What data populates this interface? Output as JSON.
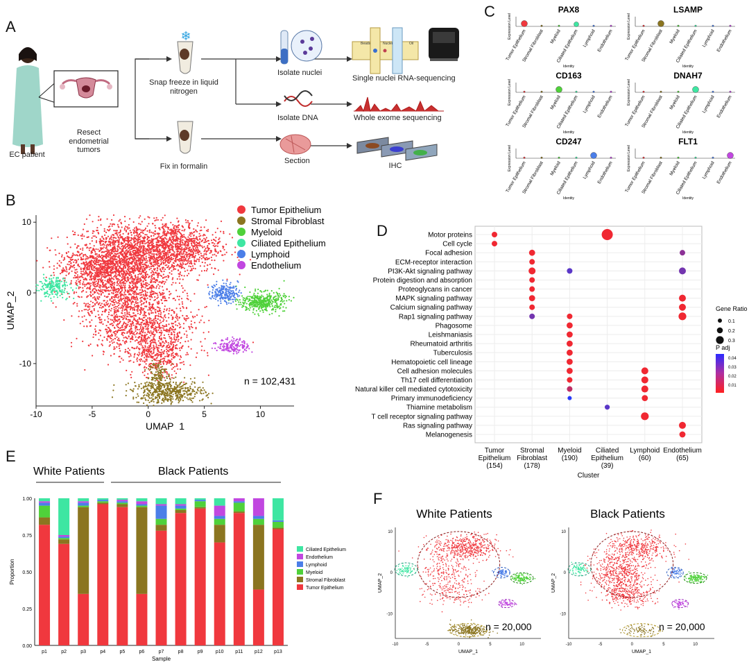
{
  "panels": {
    "a": "A",
    "b": "B",
    "c": "C",
    "d": "D",
    "e": "E",
    "f": "F"
  },
  "panel_a": {
    "patient": "EC patient",
    "resect": "Resect endometrial tumors",
    "snap": "Snap freeze in liquid nitrogen",
    "fix": "Fix in formalin",
    "isolate_nuclei": "Isolate nuclei",
    "isolate_dna": "Isolate DNA",
    "section": "Section",
    "snrna": "Single nuclei RNA-sequencing",
    "wes": "Whole exome sequencing",
    "ihc": "IHC",
    "beads": "Beads",
    "nuclei": "Nuclei",
    "oil": "Oil"
  },
  "colors": {
    "tumor": "#f0383e",
    "stromal": "#8b7520",
    "myeloid": "#4fd13a",
    "ciliated": "#3ee6a2",
    "lymphoid": "#4b7ee8",
    "endothelium": "#c147e0"
  },
  "chart_data": [
    {
      "type": "scatter",
      "id": "B",
      "xlabel": "UMAP_1",
      "ylabel": "UMAP_2",
      "xlim": [
        -10,
        13
      ],
      "ylim": [
        -16,
        11
      ],
      "xticks": [
        -10,
        -5,
        0,
        5,
        10
      ],
      "yticks": [
        -10,
        0,
        10
      ],
      "legend": [
        "Tumor Epithelium",
        "Stromal Fibroblast",
        "Myeloid",
        "Ciliated Epithelium",
        "Lymphoid",
        "Endothelium"
      ],
      "legend_position": "top-right",
      "annotation": "n = 102,431",
      "clusters": [
        {
          "name": "Tumor Epithelium",
          "x": -0.5,
          "y": 0.5
        },
        {
          "name": "Stromal Fibroblast",
          "x": 1.5,
          "y": -14
        },
        {
          "name": "Myeloid",
          "x": 10.2,
          "y": -1.3
        },
        {
          "name": "Ciliated Epithelium",
          "x": -8.5,
          "y": 0.8
        },
        {
          "name": "Lymphoid",
          "x": 6.8,
          "y": 0
        },
        {
          "name": "Endothelium",
          "x": 7.5,
          "y": -7.5
        }
      ]
    },
    {
      "type": "violin",
      "id": "C",
      "ylabel": "Expression Level",
      "xlabel": "Identity",
      "categories": [
        "Tumor Epithelium",
        "Stromal Fibroblast",
        "Myeloid",
        "Ciliated Epithelium",
        "Lymphoid",
        "Endothelium"
      ],
      "genes": [
        {
          "name": "PAX8",
          "dominant": "Tumor Epithelium",
          "secondary": "Ciliated Epithelium"
        },
        {
          "name": "LSAMP",
          "dominant": "Stromal Fibroblast"
        },
        {
          "name": "CD163",
          "dominant": "Myeloid"
        },
        {
          "name": "DNAH7",
          "dominant": "Ciliated Epithelium"
        },
        {
          "name": "CD247",
          "dominant": "Lymphoid"
        },
        {
          "name": "FLT1",
          "dominant": "Endothelium"
        }
      ]
    },
    {
      "type": "dot",
      "id": "D",
      "xlabel": "Cluster",
      "clusters": [
        {
          "name": "Tumor Epithelium",
          "n": "(154)"
        },
        {
          "name": "Stromal Fibroblast",
          "n": "(178)"
        },
        {
          "name": "Myeloid",
          "n": "(190)"
        },
        {
          "name": "Ciliated Epithelium",
          "n": "(39)"
        },
        {
          "name": "Lymphoid",
          "n": "(60)"
        },
        {
          "name": "Endothelium",
          "n": "(65)"
        }
      ],
      "pathways": [
        "Motor proteins",
        "Cell cycle",
        "Focal adhesion",
        "ECM-receptor interaction",
        "PI3K-Akt signaling pathway",
        "Protein digestion and absorption",
        "Proteoglycans in cancer",
        "MAPK signaling pathway",
        "Calcium signaling pathway",
        "Rap1 signaling pathway",
        "Phagosome",
        "Leishmaniasis",
        "Rheumatoid arthritis",
        "Tuberculosis",
        "Hematopoietic cell lineage",
        "Cell adhesion molecules",
        "Th17 cell differentiation",
        "Natural killer cell mediated cytotoxicity",
        "Primary immunodeficiency",
        "Thiamine metabolism",
        "T cell receptor signaling pathway",
        "Ras signaling pathway",
        "Melanogenesis"
      ],
      "points": [
        {
          "p": 0,
          "c": 0,
          "ratio": 0.1,
          "padj": 0.005
        },
        {
          "p": 0,
          "c": 3,
          "ratio": 0.3,
          "padj": 0.005
        },
        {
          "p": 1,
          "c": 0,
          "ratio": 0.1,
          "padj": 0.005
        },
        {
          "p": 2,
          "c": 1,
          "ratio": 0.12,
          "padj": 0.005
        },
        {
          "p": 2,
          "c": 5,
          "ratio": 0.1,
          "padj": 0.025
        },
        {
          "p": 3,
          "c": 1,
          "ratio": 0.1,
          "padj": 0.005
        },
        {
          "p": 4,
          "c": 1,
          "ratio": 0.15,
          "padj": 0.005
        },
        {
          "p": 4,
          "c": 2,
          "ratio": 0.1,
          "padj": 0.035
        },
        {
          "p": 4,
          "c": 5,
          "ratio": 0.15,
          "padj": 0.03
        },
        {
          "p": 5,
          "c": 1,
          "ratio": 0.1,
          "padj": 0.005
        },
        {
          "p": 6,
          "c": 1,
          "ratio": 0.1,
          "padj": 0.005
        },
        {
          "p": 7,
          "c": 1,
          "ratio": 0.12,
          "padj": 0.005
        },
        {
          "p": 7,
          "c": 5,
          "ratio": 0.15,
          "padj": 0.005
        },
        {
          "p": 8,
          "c": 1,
          "ratio": 0.1,
          "padj": 0.005
        },
        {
          "p": 8,
          "c": 5,
          "ratio": 0.15,
          "padj": 0.005
        },
        {
          "p": 9,
          "c": 1,
          "ratio": 0.1,
          "padj": 0.03
        },
        {
          "p": 9,
          "c": 2,
          "ratio": 0.1,
          "padj": 0.005
        },
        {
          "p": 9,
          "c": 5,
          "ratio": 0.18,
          "padj": 0.005
        },
        {
          "p": 10,
          "c": 2,
          "ratio": 0.12,
          "padj": 0.005
        },
        {
          "p": 11,
          "c": 2,
          "ratio": 0.12,
          "padj": 0.005
        },
        {
          "p": 12,
          "c": 2,
          "ratio": 0.12,
          "padj": 0.005
        },
        {
          "p": 13,
          "c": 2,
          "ratio": 0.12,
          "padj": 0.005
        },
        {
          "p": 14,
          "c": 2,
          "ratio": 0.12,
          "padj": 0.005
        },
        {
          "p": 15,
          "c": 2,
          "ratio": 0.12,
          "padj": 0.005
        },
        {
          "p": 15,
          "c": 4,
          "ratio": 0.15,
          "padj": 0.005
        },
        {
          "p": 16,
          "c": 2,
          "ratio": 0.1,
          "padj": 0.005
        },
        {
          "p": 16,
          "c": 4,
          "ratio": 0.15,
          "padj": 0.005
        },
        {
          "p": 17,
          "c": 2,
          "ratio": 0.1,
          "padj": 0.015
        },
        {
          "p": 17,
          "c": 4,
          "ratio": 0.15,
          "padj": 0.005
        },
        {
          "p": 18,
          "c": 2,
          "ratio": 0.05,
          "padj": 0.045
        },
        {
          "p": 18,
          "c": 4,
          "ratio": 0.12,
          "padj": 0.005
        },
        {
          "p": 19,
          "c": 3,
          "ratio": 0.08,
          "padj": 0.035
        },
        {
          "p": 20,
          "c": 4,
          "ratio": 0.18,
          "padj": 0.005
        },
        {
          "p": 21,
          "c": 5,
          "ratio": 0.15,
          "padj": 0.005
        },
        {
          "p": 22,
          "c": 5,
          "ratio": 0.12,
          "padj": 0.005
        }
      ],
      "legend_size_title": "Gene Ratio",
      "legend_size_values": [
        "0.1",
        "0.2",
        "0.3"
      ],
      "legend_color_title": "P adj",
      "legend_color_values": [
        "0.04",
        "0.03",
        "0.02",
        "0.01"
      ]
    },
    {
      "type": "bar",
      "id": "E",
      "stacked": true,
      "xlabel": "Sample",
      "ylabel": "Proportion",
      "ylim": [
        0,
        1
      ],
      "yticks": [
        "0.00",
        "0.25",
        "0.50",
        "0.75",
        "1.00"
      ],
      "group_labels": [
        "White Patients",
        "Black Patients"
      ],
      "categories": [
        "p1",
        "p2",
        "p3",
        "p4",
        "p5",
        "p6",
        "p7",
        "p8",
        "p9",
        "p10",
        "p11",
        "p12",
        "p13"
      ],
      "series": [
        {
          "name": "Tumor Epithelium",
          "values": [
            0.82,
            0.69,
            0.35,
            0.96,
            0.94,
            0.35,
            0.78,
            0.9,
            0.93,
            0.7,
            0.9,
            0.38,
            0.79
          ]
        },
        {
          "name": "Stromal Fibroblast",
          "values": [
            0.05,
            0.03,
            0.59,
            0.01,
            0.02,
            0.59,
            0.04,
            0.02,
            0.01,
            0.12,
            0.01,
            0.44,
            0.01
          ]
        },
        {
          "name": "Myeloid",
          "values": [
            0.08,
            0.01,
            0.01,
            0.01,
            0.01,
            0.01,
            0.04,
            0.01,
            0.04,
            0.04,
            0.06,
            0.04,
            0.04
          ]
        },
        {
          "name": "Lymphoid",
          "values": [
            0.02,
            0.01,
            0.02,
            0.01,
            0.01,
            0.01,
            0.09,
            0.02,
            0.01,
            0.02,
            0.01,
            0.02,
            0.01
          ]
        },
        {
          "name": "Endothelium",
          "values": [
            0.01,
            0.01,
            0.01,
            0.0,
            0.01,
            0.02,
            0.01,
            0.01,
            0.0,
            0.07,
            0.02,
            0.12,
            0.0
          ]
        },
        {
          "name": "Ciliated Epithelium",
          "values": [
            0.02,
            0.25,
            0.02,
            0.01,
            0.01,
            0.02,
            0.04,
            0.04,
            0.01,
            0.05,
            0.0,
            0.0,
            0.15
          ]
        }
      ],
      "legend": [
        "Ciliated Epithelium",
        "Endothelium",
        "Lymphoid",
        "Myeloid",
        "Stromal Fibroblast",
        "Tumor Epithelium"
      ]
    },
    {
      "type": "scatter",
      "id": "F",
      "panels": [
        {
          "title": "White Patients",
          "annotation": "n = 20,000"
        },
        {
          "title": "Black Patients",
          "annotation": "n = 20,000"
        }
      ],
      "xlabel": "UMAP_1",
      "ylabel": "UMAP_2",
      "xticks": [
        -10,
        -5,
        0,
        5,
        10
      ],
      "yticks": [
        -10,
        0,
        10
      ]
    }
  ]
}
